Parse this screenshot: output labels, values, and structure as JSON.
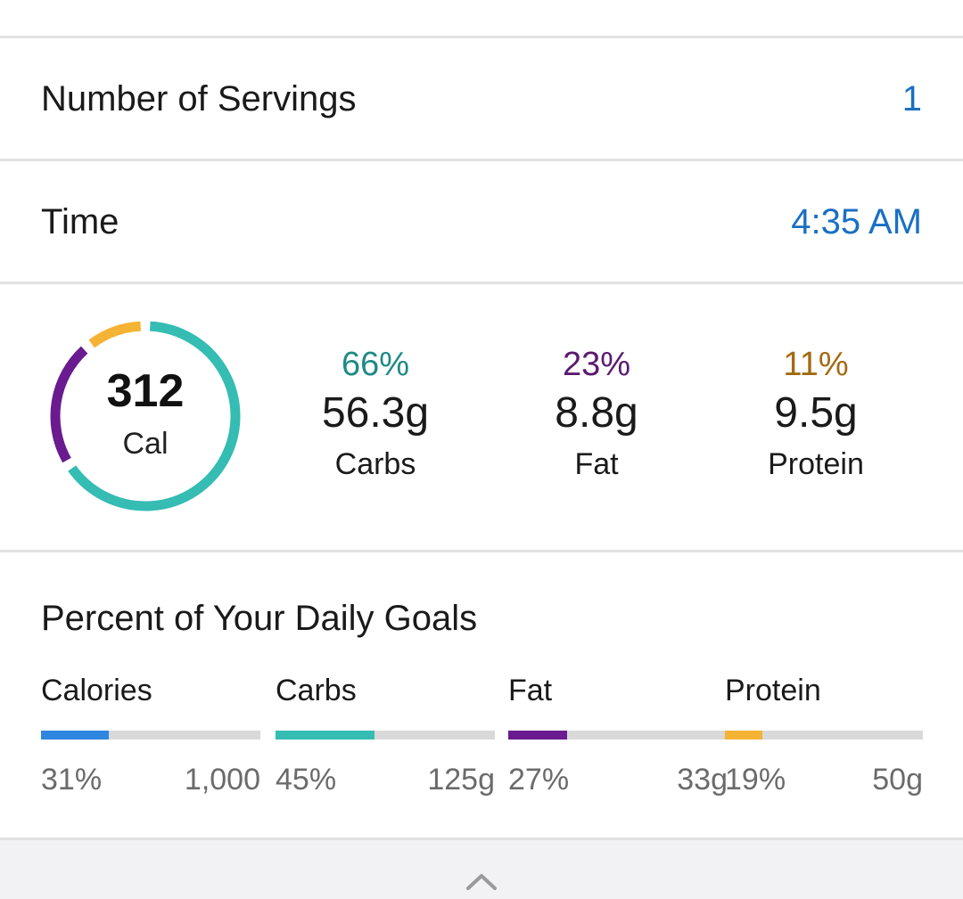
{
  "servings": {
    "label": "Number of Servings",
    "value": "1"
  },
  "time": {
    "label": "Time",
    "value": "4:35 AM"
  },
  "summary": {
    "calories": "312",
    "calories_unit": "Cal",
    "ring": {
      "carbs_fraction": 0.66,
      "fat_fraction": 0.23,
      "protein_fraction": 0.11
    },
    "macros": [
      {
        "percent": "66%",
        "grams": "56.3g",
        "name": "Carbs",
        "color": "#1f8a86"
      },
      {
        "percent": "23%",
        "grams": "8.8g",
        "name": "Fat",
        "color": "#5b1a6e"
      },
      {
        "percent": "11%",
        "grams": "9.5g",
        "name": "Protein",
        "color": "#a36a12"
      }
    ],
    "colors": {
      "carbs": "#35bcb3",
      "fat": "#6a1b8f",
      "protein": "#f5b335"
    }
  },
  "daily_goals": {
    "title": "Percent of Your Daily Goals",
    "items": [
      {
        "name": "Calories",
        "percent": "31%",
        "goal": "1,000",
        "fraction": 0.31,
        "color": "#2f86e0"
      },
      {
        "name": "Carbs",
        "percent": "45%",
        "goal": "125g",
        "fraction": 0.45,
        "color": "#35bcb3"
      },
      {
        "name": "Fat",
        "percent": "27%",
        "goal": "33g",
        "fraction": 0.27,
        "color": "#6a1b8f"
      },
      {
        "name": "Protein",
        "percent": "19%",
        "goal": "50g",
        "fraction": 0.19,
        "color": "#f5b335"
      }
    ]
  },
  "footer": {
    "icon": "chevron-up-icon"
  }
}
